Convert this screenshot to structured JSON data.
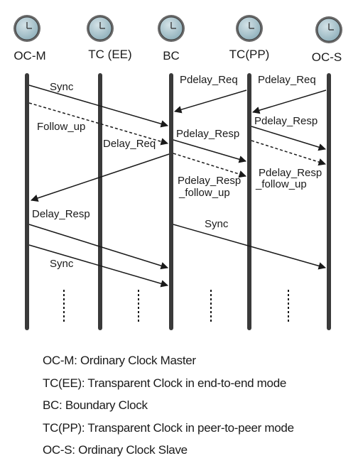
{
  "clocks": [
    {
      "id": "ocm",
      "label": "OC-M"
    },
    {
      "id": "tcee",
      "label": "TC (EE)"
    },
    {
      "id": "bc",
      "label": "BC"
    },
    {
      "id": "tcpp",
      "label": "TC(PP)"
    },
    {
      "id": "ocs",
      "label": "OC-S"
    }
  ],
  "messages": {
    "sync_1": "Sync",
    "follow_up": "Follow_up",
    "delay_req": "Delay_Req",
    "delay_resp": "Delay_Resp",
    "sync_2": "Sync",
    "pdelay_req_1": "Pdelay_Req",
    "pdelay_req_2": "Pdelay_Req",
    "pdelay_resp_1": "Pdelay_Resp",
    "pdelay_resp_2": "Pdelay_Resp",
    "pdelay_resp_follow_up_1": [
      "Pdelay_Resp",
      "_follow_up"
    ],
    "pdelay_resp_follow_up_2": [
      "Pdelay_Resp",
      "_follow_up"
    ],
    "sync_bc": "Sync"
  },
  "legend": [
    "OC-M: Ordinary Clock Master",
    "TC(EE): Transparent Clock in end-to-end mode",
    "BC: Boundary Clock",
    "TC(PP): Transparent Clock in peer-to-peer mode",
    "OC-S: Ordinary Clock Slave"
  ],
  "colors": {
    "clock_face": "#aec4cc",
    "clock_rim": "#4a4a4a",
    "line": "#1a1a1a"
  }
}
